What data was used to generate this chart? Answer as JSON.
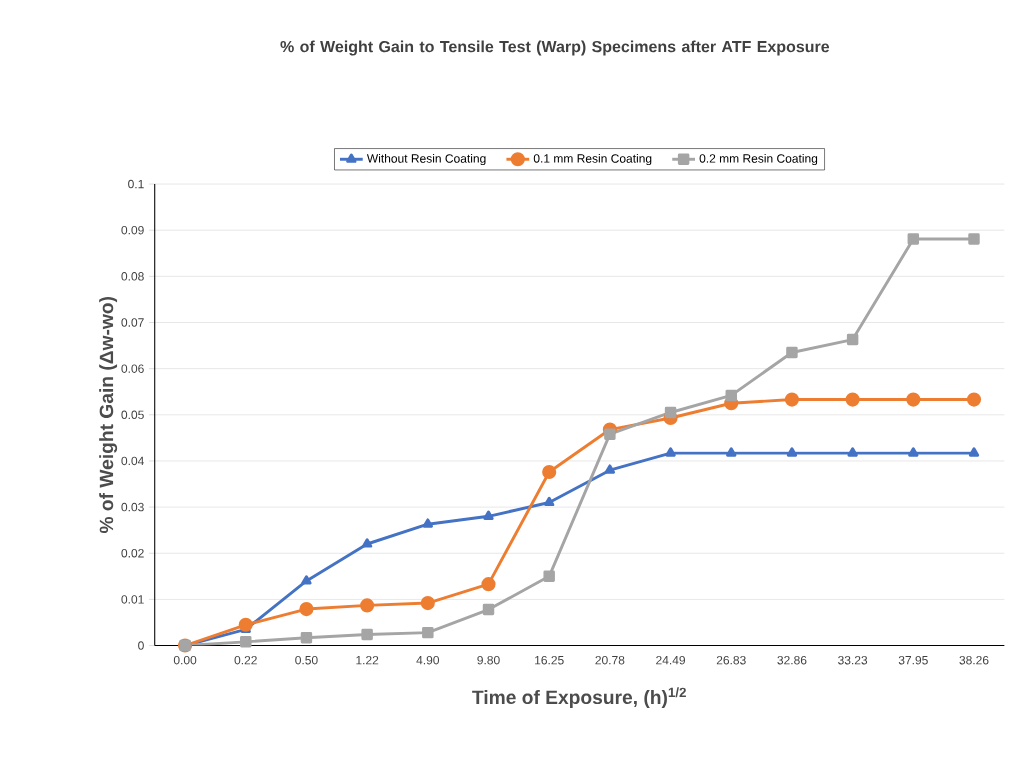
{
  "chart_data": {
    "type": "line",
    "title": "% of Weight Gain to Tensile Test (Warp) Specimens after ATF Exposure",
    "xlabel": "Time of Exposure, (h)$^{1/2}$",
    "ylabel": "% of Weight Gain (Δw-wo)",
    "categories": [
      "0.00",
      "0.22",
      "0.50",
      "1.22",
      "4.90",
      "9.80",
      "16.25",
      "20.78",
      "24.49",
      "26.83",
      "32.86",
      "33.23",
      "37.95",
      "38.26"
    ],
    "series": [
      {
        "name": "Without Resin Coating",
        "color": "#4472c4",
        "marker": "triangle",
        "values": [
          0,
          0.0035,
          0.014,
          0.022,
          0.0263,
          0.028,
          0.031,
          0.038,
          0.0417,
          0.0417,
          0.0417,
          0.0417,
          0.0417,
          0.0417
        ]
      },
      {
        "name": "0.1 mm Resin Coating",
        "color": "#ed7d31",
        "marker": "circle",
        "values": [
          0,
          0.0045,
          0.0079,
          0.0087,
          0.0092,
          0.0133,
          0.0376,
          0.0468,
          0.0493,
          0.0525,
          0.0533,
          0.0533,
          0.0533,
          0.0533
        ]
      },
      {
        "name": "0.2 mm Resin Coating",
        "color": "#a5a5a5",
        "marker": "square",
        "values": [
          0,
          0.0008,
          0.0017,
          0.0024,
          0.0028,
          0.0078,
          0.015,
          0.0458,
          0.0505,
          0.0542,
          0.0635,
          0.0663,
          0.0881,
          0.0881
        ]
      }
    ],
    "ylim": [
      0,
      0.1
    ],
    "yticks": [
      0,
      0.01,
      0.02,
      0.03,
      0.04,
      0.05,
      0.06,
      0.07,
      0.08,
      0.09,
      0.1
    ],
    "grid": "y",
    "legend": "top"
  }
}
